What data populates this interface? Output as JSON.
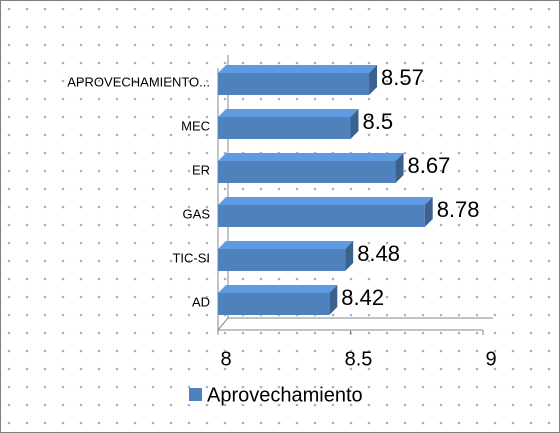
{
  "chart_data": {
    "type": "bar",
    "orientation": "horizontal",
    "categories": [
      "APROVECHAMIENTO...",
      "MEC",
      "ER",
      "GAS",
      "TIC-SI",
      "AD"
    ],
    "series": [
      {
        "name": "Aprovechamiento",
        "color": "#4f81bd",
        "values": [
          8.57,
          8.5,
          8.67,
          8.78,
          8.48,
          8.42
        ]
      }
    ],
    "xlim": [
      8,
      9
    ],
    "xticks": [
      8,
      8.5,
      9
    ],
    "legend": "bottom"
  }
}
